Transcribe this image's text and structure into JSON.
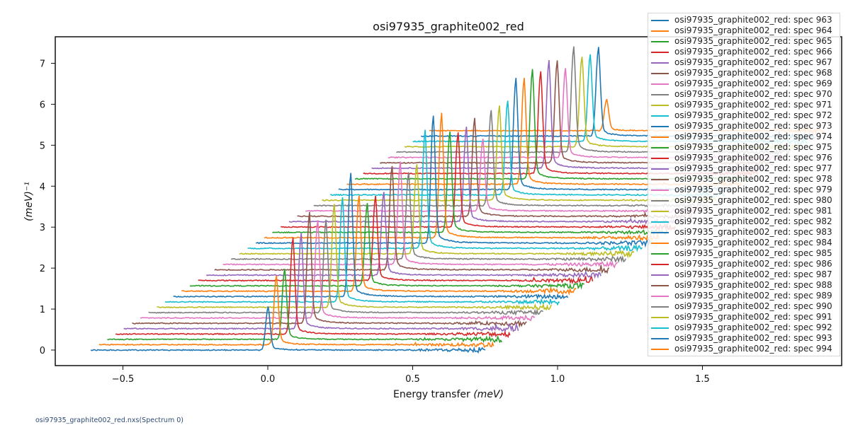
{
  "footer_text": "osi97935_graphite002_red.nxs(Spectrum 0)",
  "chart_data": {
    "type": "line",
    "subtype": "waterfall",
    "title": "osi97935_graphite002_red",
    "xlabel_main": "Energy transfer ",
    "xlabel_unit": "(meV)",
    "ylabel": "(meV)⁻¹",
    "xlim": [
      -0.733,
      1.98
    ],
    "ylim": [
      -0.38,
      7.66
    ],
    "grid": false,
    "x_ticks": [
      {
        "value": -0.5,
        "label": "−0.5"
      },
      {
        "value": 0.0,
        "label": "0.0"
      },
      {
        "value": 0.5,
        "label": "0.5"
      },
      {
        "value": 1.0,
        "label": "1.0"
      },
      {
        "value": 1.5,
        "label": "1.5"
      }
    ],
    "y_ticks": [
      {
        "value": 0,
        "label": "0"
      },
      {
        "value": 1,
        "label": "1"
      },
      {
        "value": 2,
        "label": "2"
      },
      {
        "value": 3,
        "label": "3"
      },
      {
        "value": 4,
        "label": "4"
      },
      {
        "value": 5,
        "label": "5"
      },
      {
        "value": 6,
        "label": "6"
      },
      {
        "value": 7,
        "label": "7"
      }
    ],
    "waterfall_x_offset": 0.0285,
    "waterfall_y_offset": 0.1306,
    "spectrum_x_range": [
      -0.611,
      0.753
    ],
    "peak_center": 0.0,
    "peak_heights": [
      1.0,
      1.6,
      1.64,
      2.25,
      2.21,
      2.58,
      2.28,
      2.15,
      2.4,
      2.43,
      2.88,
      2.22,
      1.92,
      1.96,
      1.93,
      2.42,
      2.4,
      2.01,
      2.09,
      2.75,
      2.97,
      2.9,
      2.34,
      2.21,
      2.2,
      2.28,
      1.69,
      2.22,
      2.21,
      2.2,
      2.59,
      2.46,
      2.55,
      2.37,
      2.5,
      2.39,
      2.08,
      2.45,
      2.1,
      2.02,
      2.06,
      0.73
    ],
    "colors": [
      "#1f77b4",
      "#ff7f0e",
      "#2ca02c",
      "#d62728",
      "#9467bd",
      "#8c564b",
      "#e377c2",
      "#7f7f7f",
      "#bcbd22",
      "#17becf"
    ],
    "legend_placement": "right",
    "legend": [
      "osi97935_graphite002_red: spec 963",
      "osi97935_graphite002_red: spec 964",
      "osi97935_graphite002_red: spec 965",
      "osi97935_graphite002_red: spec 966",
      "osi97935_graphite002_red: spec 967",
      "osi97935_graphite002_red: spec 968",
      "osi97935_graphite002_red: spec 969",
      "osi97935_graphite002_red: spec 970",
      "osi97935_graphite002_red: spec 971",
      "osi97935_graphite002_red: spec 972",
      "osi97935_graphite002_red: spec 973",
      "osi97935_graphite002_red: spec 974",
      "osi97935_graphite002_red: spec 975",
      "osi97935_graphite002_red: spec 976",
      "osi97935_graphite002_red: spec 977",
      "osi97935_graphite002_red: spec 978",
      "osi97935_graphite002_red: spec 979",
      "osi97935_graphite002_red: spec 980",
      "osi97935_graphite002_red: spec 981",
      "osi97935_graphite002_red: spec 982",
      "osi97935_graphite002_red: spec 983",
      "osi97935_graphite002_red: spec 984",
      "osi97935_graphite002_red: spec 985",
      "osi97935_graphite002_red: spec 986",
      "osi97935_graphite002_red: spec 987",
      "osi97935_graphite002_red: spec 988",
      "osi97935_graphite002_red: spec 989",
      "osi97935_graphite002_red: spec 990",
      "osi97935_graphite002_red: spec 991",
      "osi97935_graphite002_red: spec 992",
      "osi97935_graphite002_red: spec 993",
      "osi97935_graphite002_red: spec 994"
    ]
  }
}
